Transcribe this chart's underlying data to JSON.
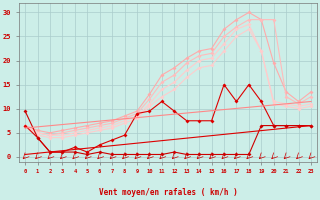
{
  "background_color": "#cceee8",
  "grid_color": "#aacccc",
  "xlabel": "Vent moyen/en rafales ( km/h )",
  "tick_color": "#cc0000",
  "xlim_min": -0.5,
  "xlim_max": 23.5,
  "ylim_min": -1,
  "ylim_max": 32,
  "yticks": [
    0,
    5,
    10,
    15,
    20,
    25,
    30
  ],
  "xticks": [
    0,
    1,
    2,
    3,
    4,
    5,
    6,
    7,
    8,
    9,
    10,
    11,
    12,
    13,
    14,
    15,
    16,
    17,
    18,
    19,
    20,
    21,
    22,
    23
  ],
  "series": [
    {
      "x": [
        0,
        1,
        2,
        3,
        4,
        5,
        6,
        7,
        8,
        9,
        10,
        11,
        12,
        13,
        14,
        15,
        16,
        17,
        18,
        19,
        20,
        21,
        22,
        23
      ],
      "y": [
        6.5,
        5.5,
        5.0,
        5.5,
        6.0,
        6.5,
        7.0,
        7.5,
        8.5,
        9.5,
        13.0,
        17.0,
        18.5,
        20.5,
        22.0,
        22.5,
        26.5,
        28.5,
        30.0,
        28.5,
        19.5,
        13.5,
        11.5,
        13.5
      ],
      "color": "#ffaaaa",
      "lw": 0.8,
      "marker": "D",
      "ms": 2.0,
      "alpha": 1.0
    },
    {
      "x": [
        0,
        1,
        2,
        3,
        4,
        5,
        6,
        7,
        8,
        9,
        10,
        11,
        12,
        13,
        14,
        15,
        16,
        17,
        18,
        19,
        20,
        21,
        22,
        23
      ],
      "y": [
        6.5,
        5.0,
        4.5,
        5.0,
        5.5,
        6.0,
        6.5,
        7.0,
        8.0,
        9.0,
        12.0,
        15.5,
        17.0,
        19.5,
        21.0,
        21.5,
        25.0,
        27.0,
        28.5,
        28.5,
        28.5,
        12.5,
        11.0,
        12.5
      ],
      "color": "#ffbbbb",
      "lw": 0.8,
      "marker": "D",
      "ms": 2.0,
      "alpha": 1.0
    },
    {
      "x": [
        0,
        1,
        2,
        3,
        4,
        5,
        6,
        7,
        8,
        9,
        10,
        11,
        12,
        13,
        14,
        15,
        16,
        17,
        18,
        19,
        20,
        21,
        22,
        23
      ],
      "y": [
        6.5,
        5.0,
        4.5,
        4.5,
        5.0,
        5.5,
        6.0,
        6.5,
        7.5,
        8.5,
        11.0,
        14.0,
        15.5,
        18.0,
        20.0,
        20.5,
        23.5,
        26.5,
        27.5,
        22.0,
        11.5,
        11.0,
        10.5,
        11.0
      ],
      "color": "#ffcccc",
      "lw": 0.8,
      "marker": "D",
      "ms": 2.0,
      "alpha": 1.0
    },
    {
      "x": [
        0,
        1,
        2,
        3,
        4,
        5,
        6,
        7,
        8,
        9,
        10,
        11,
        12,
        13,
        14,
        15,
        16,
        17,
        18,
        19,
        20,
        21,
        22,
        23
      ],
      "y": [
        6.5,
        4.5,
        4.0,
        4.0,
        4.5,
        5.0,
        5.5,
        6.0,
        7.0,
        8.0,
        10.5,
        12.5,
        14.0,
        16.5,
        18.5,
        19.0,
        22.0,
        25.0,
        26.5,
        22.0,
        11.0,
        10.5,
        10.0,
        10.5
      ],
      "color": "#ffcccc",
      "lw": 0.8,
      "marker": "D",
      "ms": 2.0,
      "alpha": 1.0
    },
    {
      "x": [
        0,
        1,
        2,
        3,
        4,
        5,
        6,
        7,
        8,
        9,
        10,
        11,
        12,
        13,
        14,
        15,
        16,
        17,
        18,
        19,
        20,
        21,
        22,
        23
      ],
      "y": [
        6.5,
        4.0,
        1.0,
        1.0,
        2.0,
        1.0,
        2.5,
        3.5,
        4.5,
        9.0,
        9.5,
        11.5,
        9.5,
        7.5,
        7.5,
        7.5,
        15.0,
        11.5,
        15.0,
        11.5,
        6.5,
        6.5,
        6.5,
        6.5
      ],
      "color": "#dd0000",
      "lw": 0.8,
      "marker": "D",
      "ms": 2.0,
      "alpha": 1.0
    },
    {
      "x": [
        0,
        1,
        2,
        3,
        4,
        5,
        6,
        7,
        8,
        9,
        10,
        11,
        12,
        13,
        14,
        15,
        16,
        17,
        18,
        19,
        20,
        21,
        22,
        23
      ],
      "y": [
        9.5,
        4.0,
        1.0,
        1.0,
        1.0,
        0.5,
        1.0,
        0.5,
        0.5,
        0.5,
        0.5,
        0.5,
        1.0,
        0.5,
        0.5,
        0.5,
        0.5,
        0.5,
        0.5,
        6.5,
        6.5,
        6.5,
        6.5,
        6.5
      ],
      "color": "#cc0000",
      "lw": 0.8,
      "marker": "D",
      "ms": 2.0,
      "alpha": 1.0
    },
    {
      "x": [
        0,
        23
      ],
      "y": [
        0.5,
        6.5
      ],
      "color": "#dd0000",
      "lw": 0.8,
      "marker": null,
      "ms": 0,
      "alpha": 1.0
    },
    {
      "x": [
        0,
        23
      ],
      "y": [
        6.0,
        11.5
      ],
      "color": "#ff8888",
      "lw": 0.8,
      "marker": null,
      "ms": 0,
      "alpha": 1.0
    }
  ],
  "arrows_x": [
    0,
    1,
    2,
    3,
    4,
    5,
    6,
    7,
    8,
    9,
    10,
    11,
    12,
    13,
    14,
    15,
    16,
    17,
    18,
    19,
    20,
    21,
    22,
    23
  ],
  "arrow_color": "#cc0000"
}
